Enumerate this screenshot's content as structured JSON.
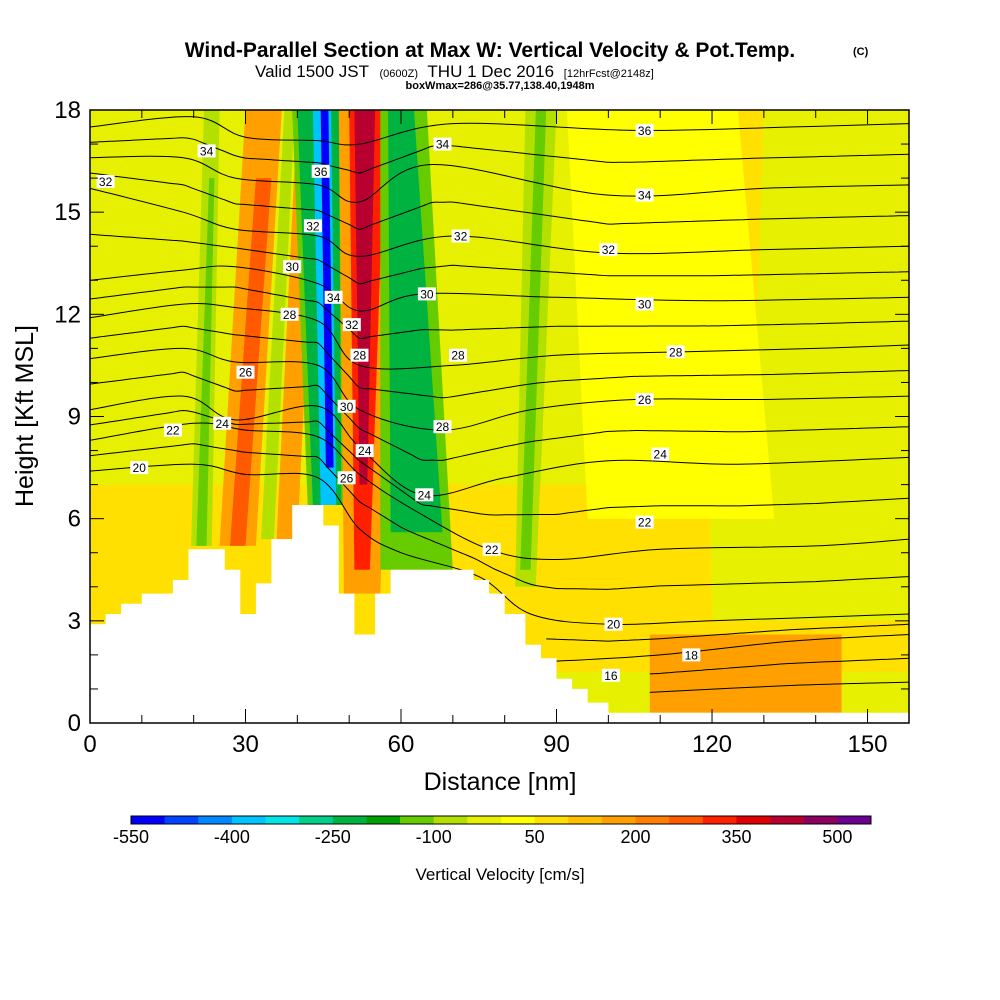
{
  "chart_data": {
    "type": "heatmap",
    "title": "Wind-Parallel Section at Max W: Vertical Velocity & Pot.Temp.",
    "title_mark": "(C)",
    "subtitle_main": "Valid 1500 JST",
    "subtitle_z": "(0600Z)",
    "subtitle_date": "THU 1 Dec 2016",
    "subtitle_fcst": "[12hrFcst@2148z]",
    "subtitle3": "boxWmax=286@35.77,138.40,1948m",
    "xlabel": "Distance [nm]",
    "ylabel": "Height [Kft MSL]",
    "xlim": [
      0,
      158
    ],
    "ylim": [
      0,
      18
    ],
    "x_major_ticks": [
      0,
      30,
      60,
      90,
      120,
      150
    ],
    "x_tick_labels": [
      "0",
      "30",
      "60",
      "90",
      "120",
      "150"
    ],
    "y_major_ticks": [
      0,
      3,
      6,
      9,
      12,
      15,
      18
    ],
    "y_tick_labels": [
      "0",
      "3",
      "6",
      "9",
      "12",
      "15",
      "18"
    ],
    "colorbar": {
      "label": "Vertical Velocity [cm/s]",
      "colors": [
        "#0000ff",
        "#0044ff",
        "#0088ff",
        "#00c4ff",
        "#00e6e6",
        "#00d08a",
        "#00b340",
        "#00a000",
        "#66cc00",
        "#b4e000",
        "#e6f000",
        "#ffff00",
        "#ffe000",
        "#ffc000",
        "#ffa000",
        "#ff8000",
        "#ff5a00",
        "#ff2000",
        "#e00000",
        "#b80030",
        "#8c0060",
        "#6a0090"
      ],
      "tick_values": [
        -550,
        -400,
        -250,
        -100,
        50,
        200,
        350,
        500
      ],
      "tick_labels": [
        "-550",
        "-400",
        "-250",
        "-100",
        "50",
        "200",
        "350",
        "500"
      ],
      "range": [
        -550,
        550
      ]
    },
    "terrain": {
      "units": "kft",
      "points": [
        [
          0,
          2.9
        ],
        [
          3,
          2.9
        ],
        [
          3,
          3.2
        ],
        [
          6,
          3.2
        ],
        [
          6,
          3.5
        ],
        [
          10,
          3.5
        ],
        [
          10,
          3.8
        ],
        [
          16,
          3.8
        ],
        [
          16,
          4.2
        ],
        [
          19,
          4.2
        ],
        [
          19,
          5.1
        ],
        [
          26,
          5.1
        ],
        [
          26,
          4.5
        ],
        [
          29,
          4.5
        ],
        [
          29,
          3.2
        ],
        [
          32,
          3.2
        ],
        [
          32,
          4.1
        ],
        [
          35,
          4.1
        ],
        [
          35,
          5.4
        ],
        [
          39,
          5.4
        ],
        [
          39,
          6.4
        ],
        [
          45,
          6.4
        ],
        [
          45,
          5.8
        ],
        [
          48,
          5.8
        ],
        [
          48,
          3.8
        ],
        [
          51,
          3.8
        ],
        [
          51,
          2.6
        ],
        [
          55,
          2.6
        ],
        [
          55,
          3.8
        ],
        [
          58,
          3.8
        ],
        [
          58,
          4.5
        ],
        [
          74,
          4.5
        ],
        [
          74,
          4.2
        ],
        [
          77,
          4.2
        ],
        [
          77,
          3.8
        ],
        [
          80,
          3.8
        ],
        [
          80,
          3.2
        ],
        [
          84,
          3.2
        ],
        [
          84,
          2.3
        ],
        [
          87,
          2.3
        ],
        [
          87,
          1.9
        ],
        [
          90,
          1.9
        ],
        [
          90,
          1.3
        ],
        [
          93,
          1.3
        ],
        [
          93,
          1.0
        ],
        [
          96,
          1.0
        ],
        [
          96,
          0.6
        ],
        [
          100,
          0.6
        ],
        [
          100,
          0.3
        ],
        [
          158,
          0.3
        ]
      ]
    },
    "theta_series": [
      {
        "name": "16",
        "values": [
          [
            108,
            0.9
          ],
          [
            135,
            1.1
          ],
          [
            158,
            1.2
          ]
        ]
      },
      {
        "name": "18",
        "values": [
          [
            88,
            1.8
          ],
          [
            110,
            2.0
          ],
          [
            135,
            2.4
          ],
          [
            158,
            2.6
          ]
        ]
      },
      {
        "name": "20",
        "values": [
          [
            0,
            7.4
          ],
          [
            20,
            7.6
          ],
          [
            30,
            7.3
          ],
          [
            44,
            7.2
          ],
          [
            52,
            5.7
          ],
          [
            60,
            5.0
          ],
          [
            75,
            4.3
          ],
          [
            85,
            3.2
          ],
          [
            100,
            2.9
          ],
          [
            120,
            3.0
          ],
          [
            158,
            3.2
          ]
        ]
      },
      {
        "name": "22",
        "values": [
          [
            0,
            8.3
          ],
          [
            20,
            8.8
          ],
          [
            30,
            8.6
          ],
          [
            44,
            8.4
          ],
          [
            52,
            7.3
          ],
          [
            62,
            6.3
          ],
          [
            77,
            5.1
          ],
          [
            90,
            4.8
          ],
          [
            110,
            5.1
          ],
          [
            140,
            5.2
          ],
          [
            158,
            5.4
          ]
        ]
      },
      {
        "name": "24",
        "values": [
          [
            0,
            9.2
          ],
          [
            18,
            9.6
          ],
          [
            28,
            8.9
          ],
          [
            44,
            9.3
          ],
          [
            52,
            8.1
          ],
          [
            64,
            6.7
          ],
          [
            80,
            7.2
          ],
          [
            100,
            7.7
          ],
          [
            125,
            7.6
          ],
          [
            158,
            7.8
          ]
        ]
      },
      {
        "name": "26",
        "values": [
          [
            0,
            10.7
          ],
          [
            18,
            11.0
          ],
          [
            28,
            10.6
          ],
          [
            44,
            10.5
          ],
          [
            52,
            9.2
          ],
          [
            68,
            8.6
          ],
          [
            85,
            9.2
          ],
          [
            105,
            9.5
          ],
          [
            130,
            9.5
          ],
          [
            158,
            9.6
          ]
        ]
      },
      {
        "name": "28",
        "values": [
          [
            0,
            11.9
          ],
          [
            18,
            12.3
          ],
          [
            28,
            12.2
          ],
          [
            44,
            11.8
          ],
          [
            52,
            10.5
          ],
          [
            70,
            10.5
          ],
          [
            90,
            10.8
          ],
          [
            115,
            10.9
          ],
          [
            140,
            11.0
          ],
          [
            158,
            11.1
          ]
        ]
      },
      {
        "name": "30",
        "values": [
          [
            0,
            13.0
          ],
          [
            18,
            13.3
          ],
          [
            28,
            13.4
          ],
          [
            44,
            12.9
          ],
          [
            52,
            12.1
          ],
          [
            64,
            12.6
          ],
          [
            90,
            12.5
          ],
          [
            120,
            12.4
          ],
          [
            158,
            12.5
          ]
        ]
      },
      {
        "name": "32",
        "values": [
          [
            0,
            15.7
          ],
          [
            18,
            15.0
          ],
          [
            28,
            14.5
          ],
          [
            44,
            14.3
          ],
          [
            52,
            13.7
          ],
          [
            70,
            14.3
          ],
          [
            100,
            13.8
          ],
          [
            130,
            13.9
          ],
          [
            158,
            14.0
          ]
        ]
      },
      {
        "name": "34",
        "values": [
          [
            0,
            16.6
          ],
          [
            18,
            16.6
          ],
          [
            28,
            16.0
          ],
          [
            44,
            15.8
          ],
          [
            52,
            15.3
          ],
          [
            66,
            16.4
          ],
          [
            100,
            15.5
          ],
          [
            130,
            15.7
          ],
          [
            158,
            15.8
          ]
        ]
      },
      {
        "name": "36",
        "values": [
          [
            0,
            17.5
          ],
          [
            20,
            17.8
          ],
          [
            30,
            17.2
          ],
          [
            44,
            17.1
          ],
          [
            52,
            17.0
          ],
          [
            70,
            17.6
          ],
          [
            105,
            17.4
          ],
          [
            135,
            17.5
          ],
          [
            158,
            17.6
          ]
        ]
      }
    ],
    "theta_labels": [
      {
        "text": "36",
        "x": 107,
        "y": 17.4
      },
      {
        "text": "34",
        "x": 68,
        "y": 17.0
      },
      {
        "text": "36",
        "x": 44.5,
        "y": 16.2
      },
      {
        "text": "34",
        "x": 22.5,
        "y": 16.8
      },
      {
        "text": "32",
        "x": 3,
        "y": 15.9
      },
      {
        "text": "34",
        "x": 107,
        "y": 15.5
      },
      {
        "text": "32",
        "x": 43,
        "y": 14.6
      },
      {
        "text": "32",
        "x": 71.5,
        "y": 14.3
      },
      {
        "text": "32",
        "x": 100,
        "y": 13.9
      },
      {
        "text": "30",
        "x": 39,
        "y": 13.4
      },
      {
        "text": "34",
        "x": 47,
        "y": 12.5
      },
      {
        "text": "30",
        "x": 65,
        "y": 12.6
      },
      {
        "text": "30",
        "x": 107,
        "y": 12.3
      },
      {
        "text": "28",
        "x": 38.5,
        "y": 12.0
      },
      {
        "text": "32",
        "x": 50.5,
        "y": 11.7
      },
      {
        "text": "28",
        "x": 52,
        "y": 10.8
      },
      {
        "text": "28",
        "x": 113,
        "y": 10.9
      },
      {
        "text": "26",
        "x": 30,
        "y": 10.3
      },
      {
        "text": "28",
        "x": 71,
        "y": 10.8
      },
      {
        "text": "30",
        "x": 49.5,
        "y": 9.3
      },
      {
        "text": "26",
        "x": 107,
        "y": 9.5
      },
      {
        "text": "24",
        "x": 25.5,
        "y": 8.8
      },
      {
        "text": "22",
        "x": 16,
        "y": 8.6
      },
      {
        "text": "28",
        "x": 68,
        "y": 8.7
      },
      {
        "text": "24",
        "x": 53,
        "y": 8.0
      },
      {
        "text": "24",
        "x": 110,
        "y": 7.9
      },
      {
        "text": "20",
        "x": 9.5,
        "y": 7.5
      },
      {
        "text": "26",
        "x": 49.5,
        "y": 7.2
      },
      {
        "text": "24",
        "x": 64.5,
        "y": 6.7
      },
      {
        "text": "22",
        "x": 107,
        "y": 5.9
      },
      {
        "text": "22",
        "x": 77.5,
        "y": 5.1
      },
      {
        "text": "20",
        "x": 101,
        "y": 2.9
      },
      {
        "text": "18",
        "x": 116,
        "y": 2.0
      },
      {
        "text": "16",
        "x": 100.5,
        "y": 1.4
      }
    ],
    "velocity_bands": [
      {
        "value": 60,
        "bottom": [
          0,
          1.5,
          158
        ],
        "top": [
          0,
          18,
          158
        ]
      },
      {
        "value": -20,
        "bottom": [
          0,
          7,
          158
        ],
        "top": [
          0,
          18,
          160
        ]
      },
      {
        "value": -20,
        "bottom": [
          120,
          3,
          158
        ],
        "top": [
          118,
          18,
          158
        ]
      },
      {
        "value": 90,
        "bottom": [
          104,
          9,
          128
        ],
        "top": [
          100,
          18,
          130
        ]
      },
      {
        "value": 20,
        "bottom": [
          96,
          6,
          132
        ],
        "top": [
          92,
          18,
          125
        ]
      },
      {
        "value": -60,
        "bottom": [
          19.5,
          5.2,
          23.5
        ],
        "top": [
          22,
          18,
          25
        ]
      },
      {
        "value": -130,
        "bottom": [
          20.5,
          5.2,
          22.5
        ],
        "top": [
          23,
          16,
          24
        ]
      },
      {
        "value": 150,
        "bottom": [
          25,
          5.2,
          32
        ],
        "top": [
          30,
          18,
          37
        ]
      },
      {
        "value": 250,
        "bottom": [
          27,
          5.2,
          30
        ],
        "top": [
          32,
          16,
          35
        ]
      },
      {
        "value": -60,
        "bottom": [
          33,
          5.4,
          35.5
        ],
        "top": [
          37.5,
          18,
          39.5
        ]
      },
      {
        "value": 150,
        "bottom": [
          36,
          5.4,
          40
        ],
        "top": [
          40,
          18,
          44
        ]
      },
      {
        "value": -120,
        "bottom": [
          42,
          6.4,
          49
        ],
        "top": [
          39,
          18,
          49
        ]
      },
      {
        "value": -250,
        "bottom": [
          43,
          6.4,
          48.5
        ],
        "top": [
          40,
          18,
          48
        ]
      },
      {
        "value": -400,
        "bottom": [
          44.5,
          6.4,
          47.5
        ],
        "top": [
          43,
          18,
          46.5
        ]
      },
      {
        "value": -520,
        "bottom": [
          45.5,
          7.5,
          47
        ],
        "top": [
          44.5,
          18,
          46
        ]
      },
      {
        "value": 200,
        "bottom": [
          49,
          3.8,
          56
        ],
        "top": [
          48,
          18,
          59
        ]
      },
      {
        "value": 330,
        "bottom": [
          51,
          4.5,
          54
        ],
        "top": [
          50,
          18,
          57
        ]
      },
      {
        "value": 420,
        "bottom": [
          52,
          7,
          53.5
        ],
        "top": [
          51,
          18,
          55
        ]
      },
      {
        "value": -120,
        "bottom": [
          56,
          4.5,
          70
        ],
        "top": [
          56,
          18,
          65
        ]
      },
      {
        "value": -250,
        "bottom": [
          58,
          5.6,
          68
        ],
        "top": [
          57.5,
          18,
          62.5
        ]
      },
      {
        "value": -60,
        "bottom": [
          82,
          4.0,
          86
        ],
        "top": [
          84,
          18,
          90
        ]
      },
      {
        "value": -130,
        "bottom": [
          83,
          4.5,
          85
        ],
        "top": [
          86,
          18,
          88
        ]
      },
      {
        "value": 150,
        "bottom": [
          108,
          0.3,
          145
        ],
        "top": [
          108,
          2.6,
          145
        ]
      }
    ]
  }
}
